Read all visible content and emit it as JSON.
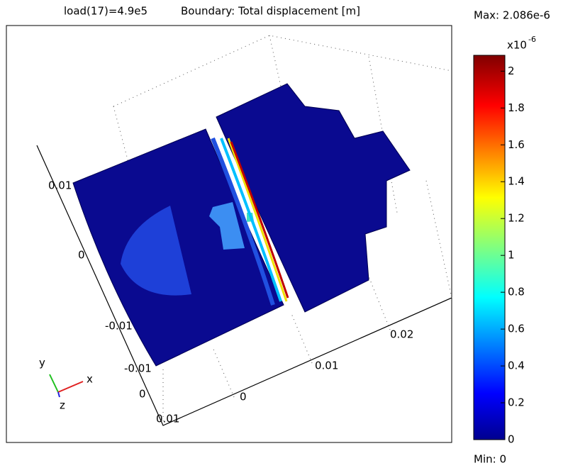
{
  "plot": {
    "title_load": "load(17)=4.9e5",
    "title_quantity": "Boundary: Total displacement [m]",
    "axis_labels": [
      "0.01",
      "0",
      "-0.01",
      "-0.01",
      "0",
      "0.01",
      "0",
      "0.01",
      "0.02"
    ],
    "triad": [
      "y",
      "x",
      "z"
    ]
  },
  "colorbar": {
    "max_label": "Max: 2.086e-6",
    "min_label": "Min: 0",
    "multiplier": "x10",
    "exponent": "-6",
    "range": [
      0,
      2.086
    ],
    "ticks": [
      0,
      0.2,
      0.4,
      0.6,
      0.8,
      1,
      1.2,
      1.4,
      1.6,
      1.8,
      2
    ]
  }
}
